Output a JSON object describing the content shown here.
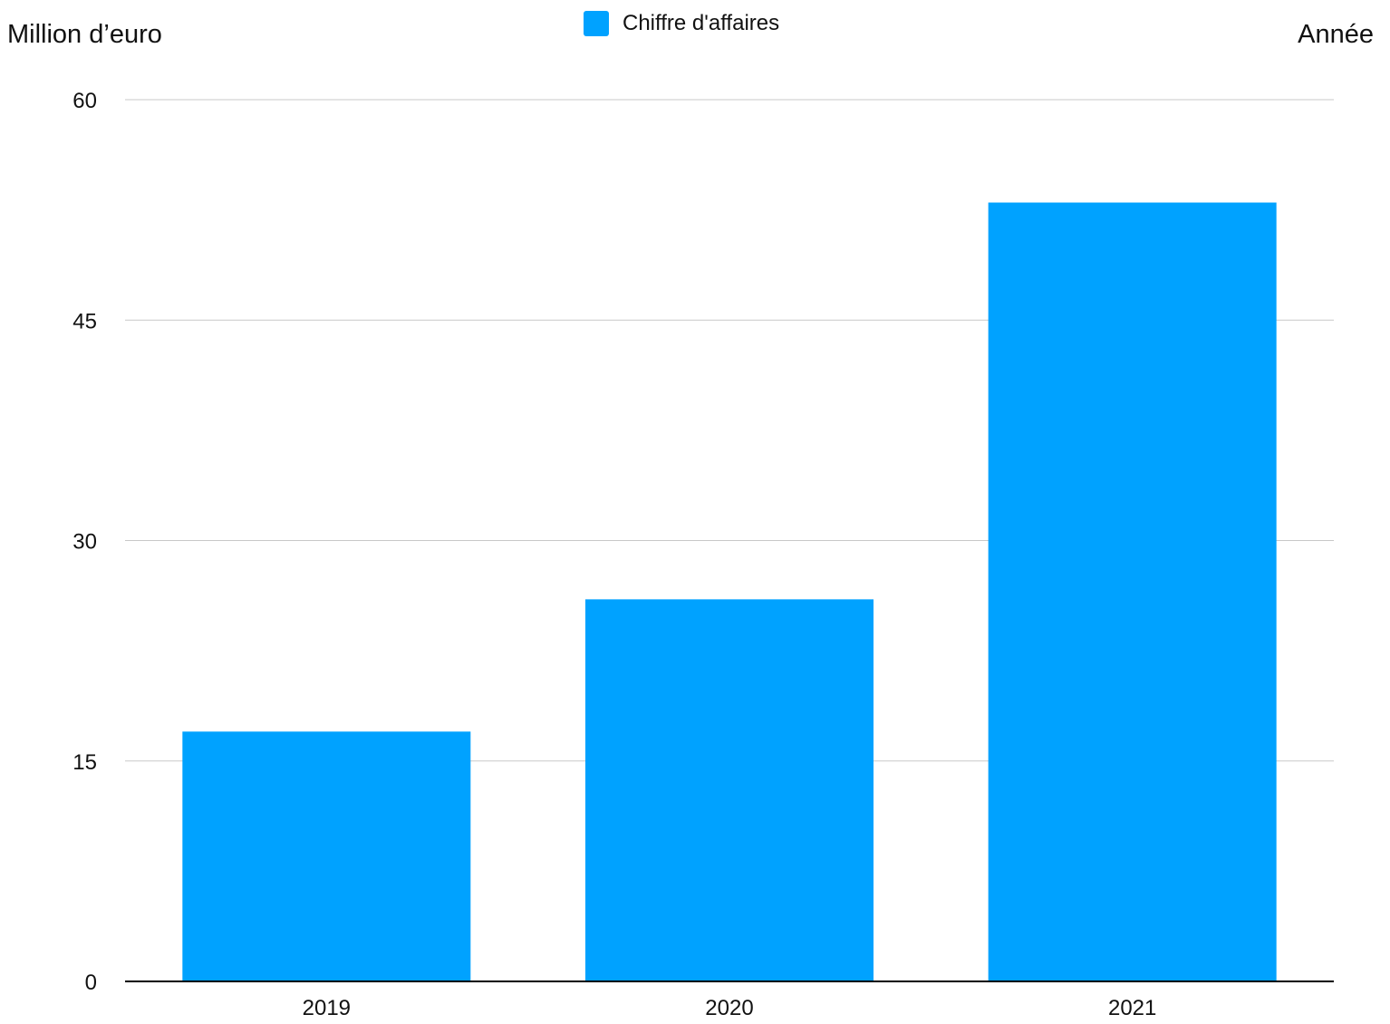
{
  "chart_data": {
    "type": "bar",
    "title": "",
    "ylabel": "Million d’euro",
    "xlabel": "Année",
    "categories": [
      "2019",
      "2020",
      "2021"
    ],
    "series": [
      {
        "name": "Chiffre d'affaires",
        "values": [
          17,
          26,
          53
        ],
        "color": "#00A2FF"
      }
    ],
    "ylim": [
      0,
      60
    ],
    "yticks": [
      "0",
      "15",
      "30",
      "45",
      "60"
    ],
    "grid": true,
    "legend": "top-center"
  },
  "colors": {
    "bar": "#00A2FF",
    "grid": "#C8C8C8",
    "axis": "#000000",
    "text": "#111111"
  }
}
